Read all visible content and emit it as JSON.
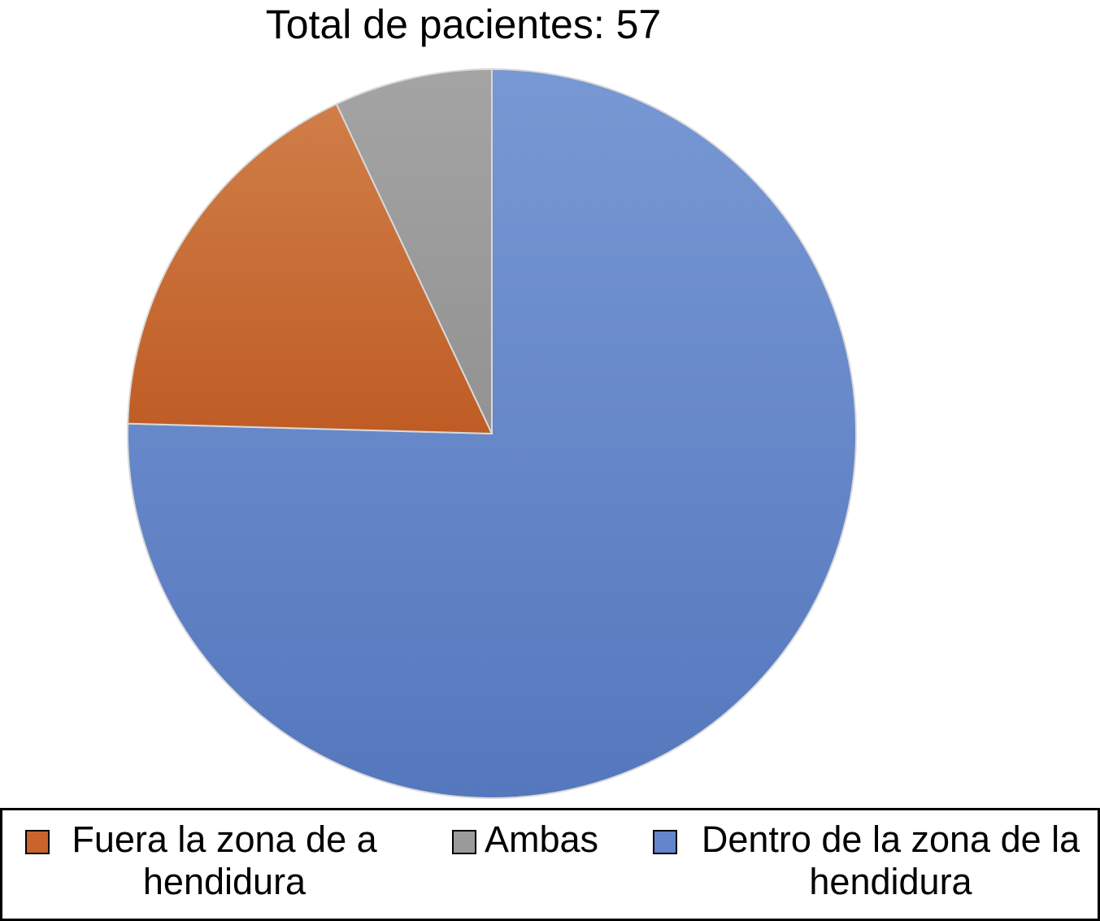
{
  "chart_data": {
    "type": "pie",
    "title": "Total de pacientes: 57",
    "slices": [
      {
        "label": "Dentro de la zona de la hendidura",
        "value": 43,
        "color": "#6385cb"
      },
      {
        "label": "Fuera la zona de a hendidura",
        "value": 10,
        "color": "#c9652c"
      },
      {
        "label": "Ambas",
        "value": 4,
        "color": "#9a9a9a"
      }
    ],
    "legend": {
      "placement": "bottom",
      "order": [
        "Fuera la zona de a hendidura",
        "Ambas",
        "Dentro de la zona de la hendidura"
      ]
    }
  }
}
